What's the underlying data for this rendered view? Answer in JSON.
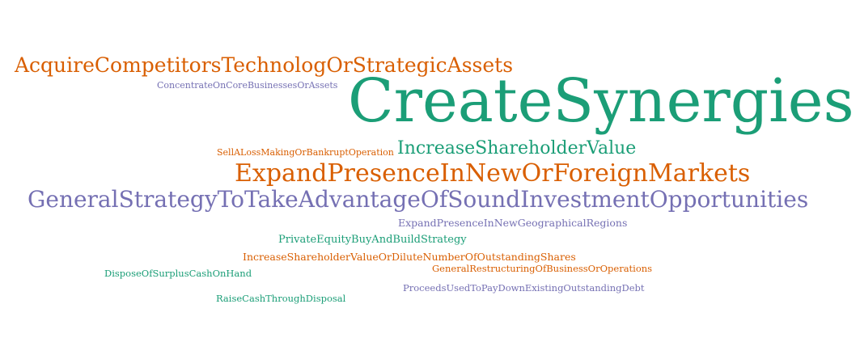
{
  "palette": {
    "green": "#1b9e77",
    "orange": "#d95f02",
    "purple": "#7570b3",
    "background": "#ffffff"
  },
  "words": [
    {
      "text": "AcquireCompetitorsTechnologOrStrategicAssets",
      "color": "orange"
    },
    {
      "text": "ConcentrateOnCoreBusinessesOrAssets",
      "color": "purple"
    },
    {
      "text": "CreateSynergies",
      "color": "green"
    },
    {
      "text": "SellALossMakingOrBankruptOperation",
      "color": "orange"
    },
    {
      "text": "IncreaseShareholderValue",
      "color": "green"
    },
    {
      "text": "ExpandPresenceInNewOrForeignMarkets",
      "color": "orange"
    },
    {
      "text": "GeneralStrategyToTakeAdvantageOfSoundInvestmentOpportunities",
      "color": "purple"
    },
    {
      "text": "ExpandPresenceInNewGeographicalRegions",
      "color": "purple"
    },
    {
      "text": "PrivateEquityBuyAndBuildStrategy",
      "color": "green"
    },
    {
      "text": "IncreaseShareholderValueOrDiluteNumberOfOutstandingShares",
      "color": "orange"
    },
    {
      "text": "GeneralRestructuringOfBusinessOrOperations",
      "color": "orange"
    },
    {
      "text": "DisposeOfSurplusCashOnHand",
      "color": "green"
    },
    {
      "text": "ProceedsUsedToPayDownExistingOutstandingDebt",
      "color": "purple"
    },
    {
      "text": "RaiseCashThroughDisposal",
      "color": "green"
    }
  ]
}
